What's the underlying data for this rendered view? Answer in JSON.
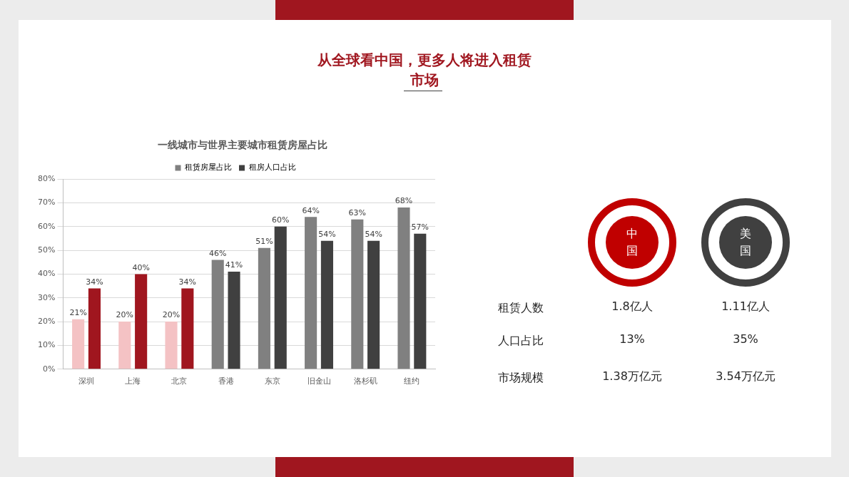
{
  "chart_data": [
    {
      "type": "bar",
      "title": "从全球看中国，更多人将进入租赁市场",
      "subtitle": "一线城市与世界主要城市租赁房屋占比",
      "categories": [
        "深圳",
        "上海",
        "北京",
        "香港",
        "东京",
        "旧金山",
        "洛杉矶",
        "纽约"
      ],
      "series": [
        {
          "name": "租赁房屋占比",
          "color": "#808080",
          "colors": [
            "#f4c2c4",
            "#f4c2c4",
            "#f4c2c4",
            "#808080",
            "#808080",
            "#808080",
            "#808080",
            "#808080"
          ],
          "values": [
            21,
            20,
            20,
            46,
            51,
            64,
            63,
            68
          ],
          "value_labels": [
            "21%",
            "20%",
            "20%",
            "46%",
            "51%",
            "64%",
            "63%",
            "68%"
          ]
        },
        {
          "name": "租房人口占比",
          "color": "#404040",
          "colors": [
            "#a0161f",
            "#a0161f",
            "#a0161f",
            "#404040",
            "#404040",
            "#404040",
            "#404040",
            "#404040"
          ],
          "values": [
            34,
            40,
            34,
            41,
            60,
            54,
            54,
            57
          ],
          "value_labels": [
            "34%",
            "40%",
            "34%",
            "41%",
            "60%",
            "54%",
            "54%",
            "57%"
          ]
        }
      ],
      "ylim": [
        0,
        80
      ],
      "yticks": [
        {
          "value": 0,
          "label": "0%"
        },
        {
          "value": 10,
          "label": "10%"
        },
        {
          "value": 20,
          "label": "20%"
        },
        {
          "value": 30,
          "label": "30%"
        },
        {
          "value": 40,
          "label": "40%"
        },
        {
          "value": 50,
          "label": "50%"
        },
        {
          "value": 60,
          "label": "60%"
        },
        {
          "value": 70,
          "label": "70%"
        },
        {
          "value": 80,
          "label": "80%"
        }
      ],
      "grid": "y",
      "legend": "top"
    },
    {
      "type": "other",
      "categories": [
        "中国",
        "美国"
      ],
      "colors": [
        "#c00000",
        "#404040"
      ],
      "y_categories": [
        "租赁人数",
        "人口占比",
        "市场规模"
      ],
      "cell_labels": [
        [
          "1.8亿人",
          "1.11亿人"
        ],
        [
          "13%",
          "35%"
        ],
        [
          "1.38万亿元",
          "3.54万亿元"
        ]
      ]
    }
  ]
}
